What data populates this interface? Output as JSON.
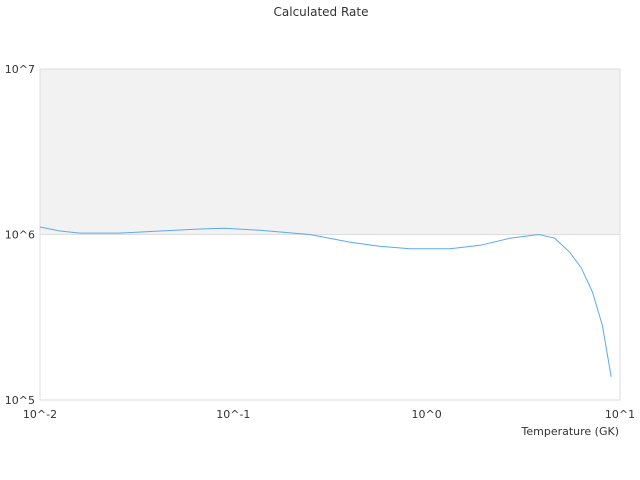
{
  "chart_data": {
    "type": "line",
    "title": "Calculated Rate",
    "xlabel": "Temperature (GK)",
    "ylabel": "",
    "xscale": "log",
    "yscale": "log",
    "xlim": [
      0.01,
      10
    ],
    "ylim": [
      100000,
      10000000
    ],
    "x_tick_values": [
      0.01,
      0.1,
      1,
      10
    ],
    "x_tick_labels": [
      "10^-2",
      "10^-1",
      "10^0",
      "10^1"
    ],
    "y_tick_values": [
      100000,
      1000000,
      10000000
    ],
    "y_tick_labels": [
      "10^5",
      "10^6",
      "10^7"
    ],
    "shaded_band": [
      1000000,
      10000000
    ],
    "grid": false,
    "colors": {
      "line": "#5aa9f0",
      "band": "#f2f2f2",
      "axis": "#dddddd"
    },
    "series": [
      {
        "x": [
          0.01,
          0.0127,
          0.016,
          0.0259,
          0.0418,
          0.0672,
          0.0904,
          0.137,
          0.249,
          0.4,
          0.57,
          0.82,
          1.32,
          1.89,
          2.7,
          3.8,
          4.6,
          5.5,
          6.3,
          7.2,
          8.1,
          9.0
        ],
        "y": [
          1110000,
          1050000,
          1020000,
          1020000,
          1050000,
          1080000,
          1090000,
          1060000,
          1000000,
          900000,
          850000,
          820000,
          820000,
          860000,
          950000,
          1000000,
          950000,
          780000,
          630000,
          450000,
          284000,
          138000
        ]
      }
    ]
  }
}
